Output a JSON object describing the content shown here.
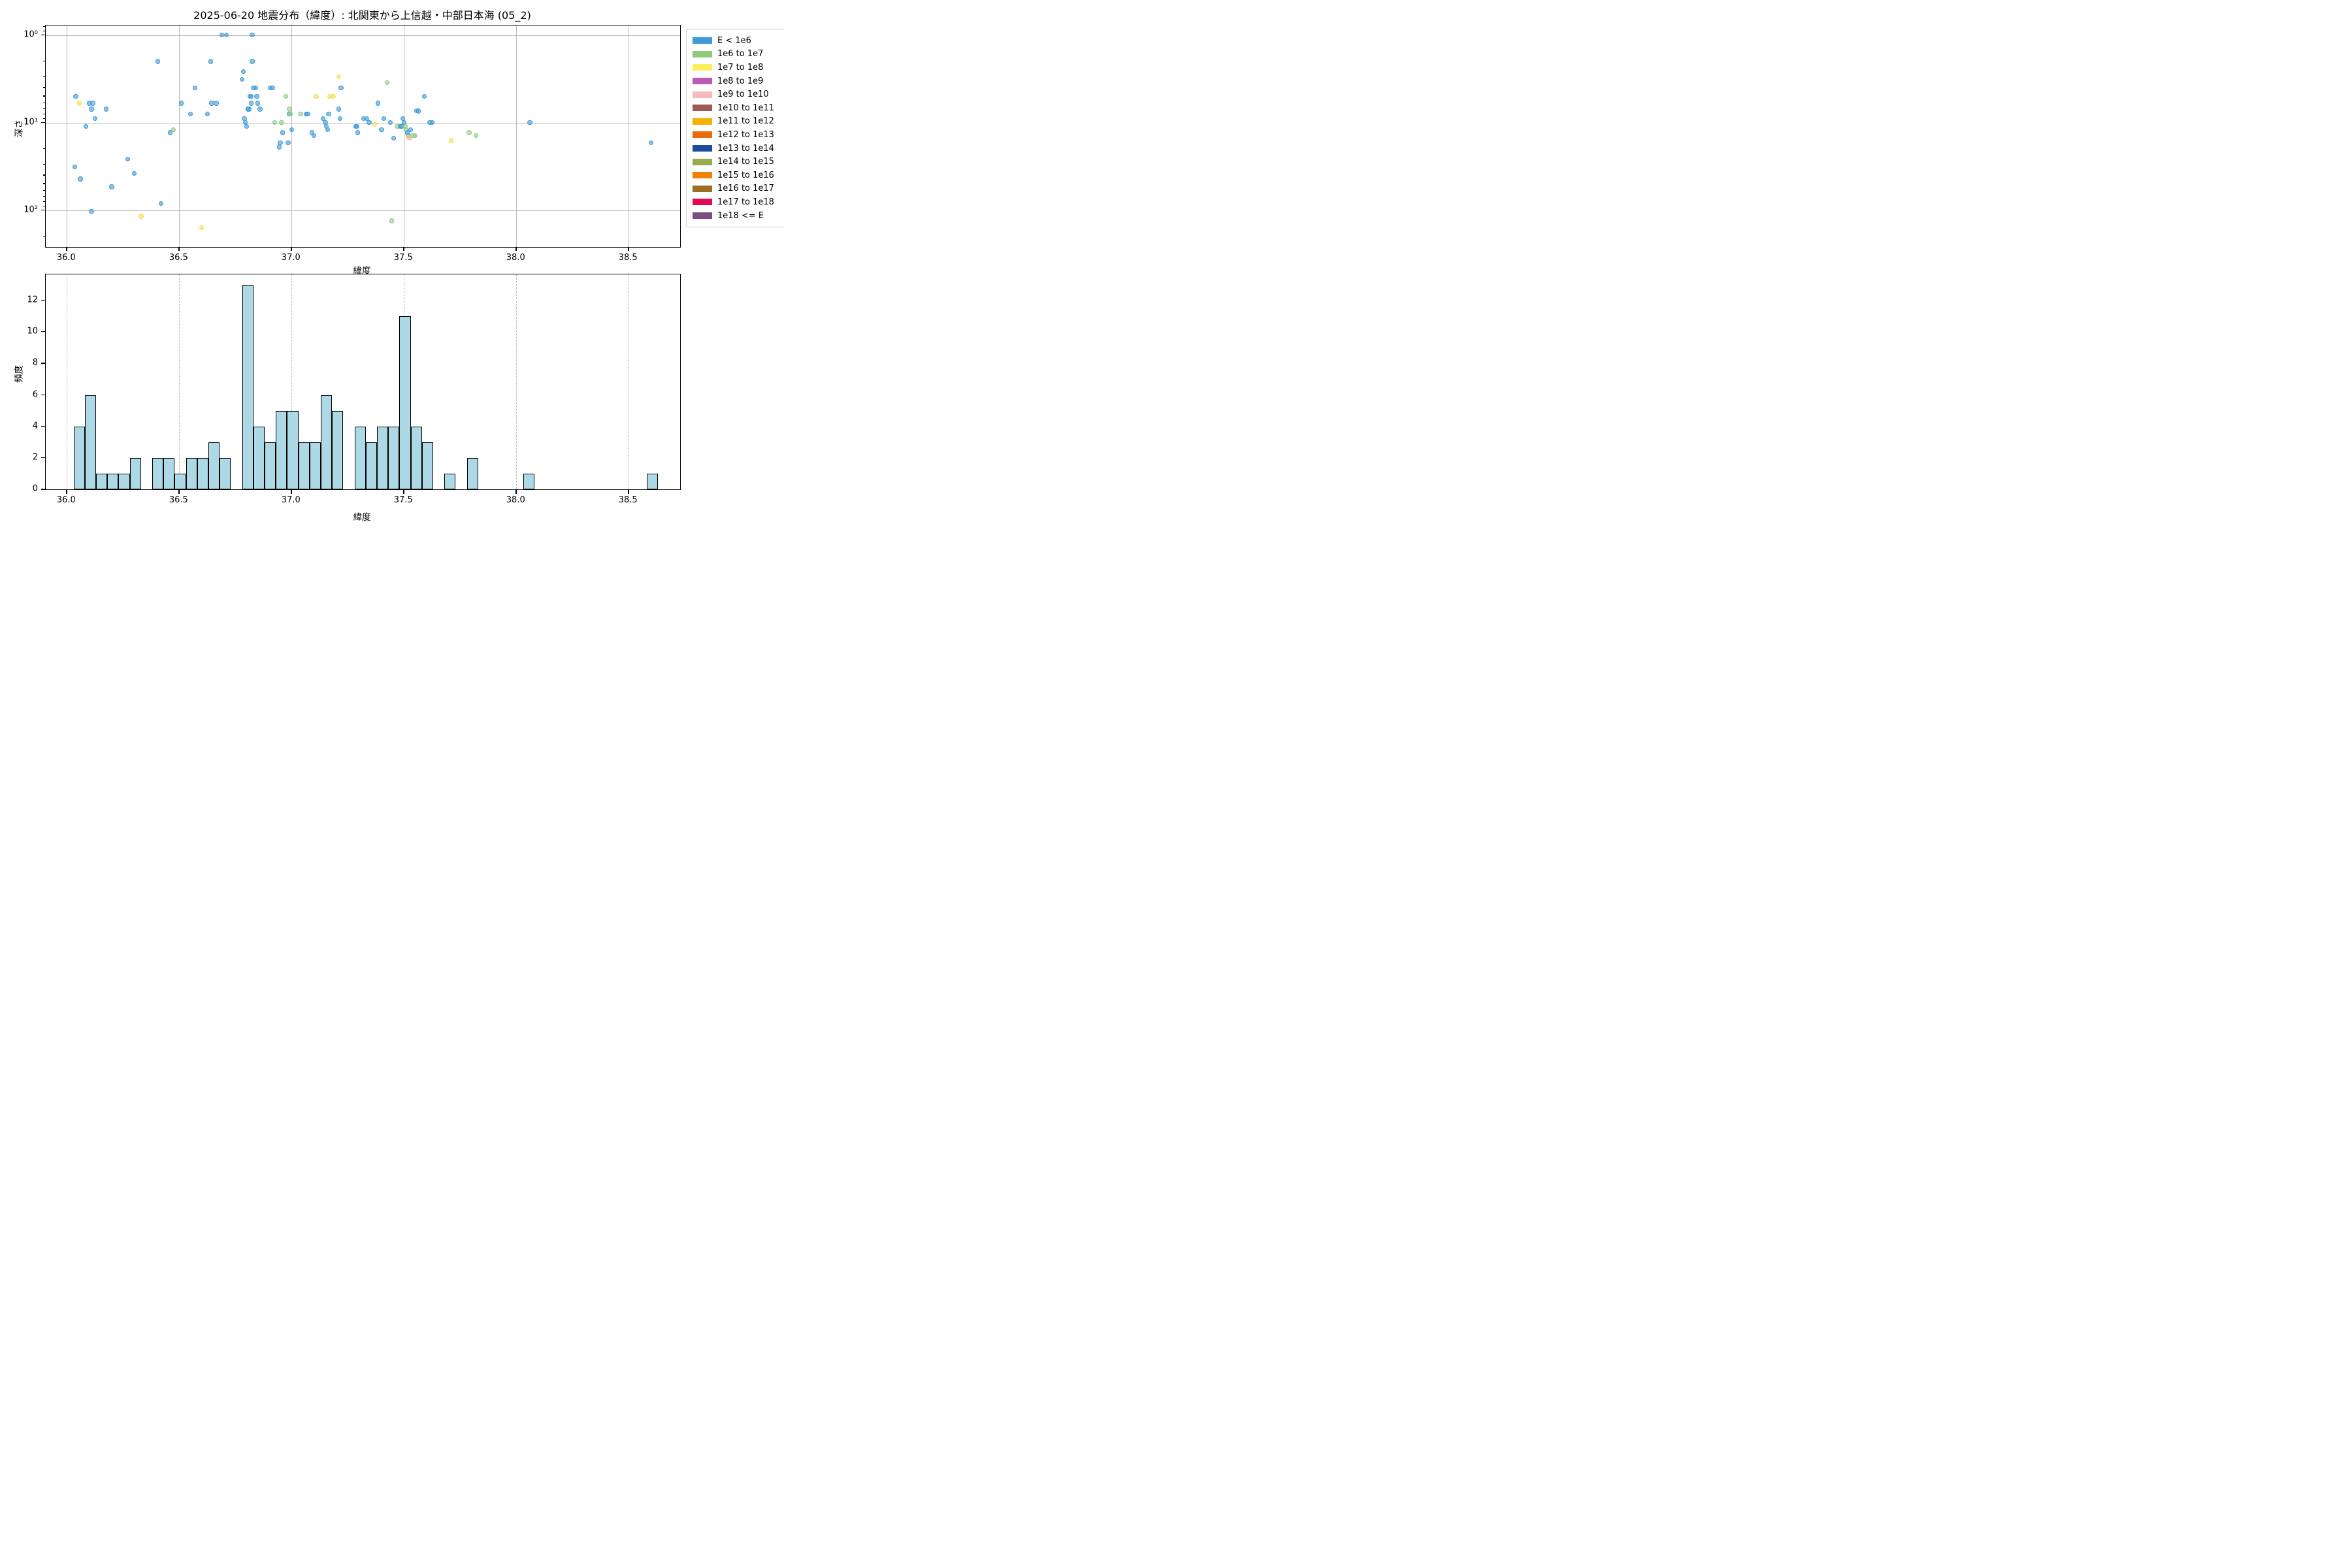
{
  "figure": {
    "title": "2025-06-20 地震分布（緯度）: 北関東から上信越・中部日本海 (05_2)",
    "background": "#ffffff"
  },
  "legend": {
    "items": [
      {
        "label": "E < 1e6",
        "color": "#3E9BD9"
      },
      {
        "label": "1e6 to 1e7",
        "color": "#8FCB7E"
      },
      {
        "label": "1e7 to 1e8",
        "color": "#F9EE5C"
      },
      {
        "label": "1e8 to 1e9",
        "color": "#BA5CB3"
      },
      {
        "label": "1e9 to 1e10",
        "color": "#F5B9BE"
      },
      {
        "label": "1e10 to 1e11",
        "color": "#9D5B52"
      },
      {
        "label": "1e11 to 1e12",
        "color": "#F3B200"
      },
      {
        "label": "1e12 to 1e13",
        "color": "#E96B0C"
      },
      {
        "label": "1e13 to 1e14",
        "color": "#1C4C9C"
      },
      {
        "label": "1e14 to 1e15",
        "color": "#95AB4D"
      },
      {
        "label": "1e15 to 1e16",
        "color": "#F08200"
      },
      {
        "label": "1e16 to 1e17",
        "color": "#9A6F24"
      },
      {
        "label": "1e17 to 1e18",
        "color": "#E00D4E"
      },
      {
        "label": "1e18 <= E",
        "color": "#7C4D80"
      }
    ]
  },
  "chart_data": [
    {
      "type": "scatter",
      "title": "2025-06-20 地震分布（緯度）: 北関東から上信越・中部日本海 (05_2)",
      "xlabel": "緯度",
      "ylabel": "深さ",
      "x_range": [
        35.906,
        38.729
      ],
      "y_scale": "log",
      "y_inverted": true,
      "y_range_depth": [
        0.77,
        266
      ],
      "xticks": [
        "36.0",
        "36.5",
        "37.0",
        "37.5",
        "38.0",
        "38.5"
      ],
      "xtick_values": [
        36.0,
        36.5,
        37.0,
        37.5,
        38.0,
        38.5
      ],
      "yticks": [
        "10⁰",
        "10¹",
        "10²"
      ],
      "ytick_values": [
        1,
        10,
        100
      ],
      "grid": "solid",
      "legend_position": "upper right outside",
      "marker_alpha": 0.6,
      "points_format": "[latitude, depth_km, energy_class_index]",
      "points": [
        [
          36.04,
          5.0,
          0
        ],
        [
          36.055,
          6.0,
          2
        ],
        [
          36.035,
          32,
          0
        ],
        [
          36.06,
          44,
          0
        ],
        [
          36.1,
          6.0,
          0
        ],
        [
          36.115,
          6.0,
          0
        ],
        [
          36.11,
          7.0,
          0
        ],
        [
          36.125,
          9.0,
          0
        ],
        [
          36.085,
          11,
          0
        ],
        [
          36.11,
          103,
          0
        ],
        [
          36.175,
          7.0,
          0
        ],
        [
          36.2,
          54,
          0
        ],
        [
          36.27,
          26,
          0
        ],
        [
          36.3,
          38,
          0
        ],
        [
          36.33,
          117,
          2
        ],
        [
          36.405,
          2.0,
          0
        ],
        [
          36.42,
          84,
          0
        ],
        [
          36.46,
          13,
          0
        ],
        [
          36.475,
          12,
          1
        ],
        [
          36.51,
          6.0,
          0
        ],
        [
          36.55,
          8.0,
          0
        ],
        [
          36.57,
          4.0,
          0
        ],
        [
          36.6,
          158,
          2
        ],
        [
          36.625,
          8.0,
          0
        ],
        [
          36.64,
          2.0,
          0
        ],
        [
          36.645,
          6.0,
          0
        ],
        [
          36.665,
          6.0,
          0
        ],
        [
          36.69,
          1.0,
          0
        ],
        [
          36.71,
          1.0,
          0
        ],
        [
          36.78,
          3.2,
          0
        ],
        [
          36.785,
          2.6,
          0
        ],
        [
          36.79,
          9.0,
          0
        ],
        [
          36.795,
          10,
          0
        ],
        [
          36.8,
          11,
          0
        ],
        [
          36.805,
          7.0,
          0
        ],
        [
          36.81,
          7.0,
          0
        ],
        [
          36.815,
          5.0,
          0
        ],
        [
          36.82,
          5.0,
          0
        ],
        [
          36.82,
          6.0,
          0
        ],
        [
          36.825,
          1.0,
          0
        ],
        [
          36.825,
          2.0,
          0
        ],
        [
          36.83,
          4.0,
          0
        ],
        [
          36.84,
          4.0,
          0
        ],
        [
          36.845,
          5.0,
          0
        ],
        [
          36.85,
          6.0,
          0
        ],
        [
          36.86,
          7.0,
          0
        ],
        [
          36.905,
          4.0,
          0
        ],
        [
          36.915,
          4.0,
          0
        ],
        [
          36.925,
          10,
          1
        ],
        [
          36.945,
          19,
          0
        ],
        [
          36.95,
          17,
          0
        ],
        [
          36.955,
          10,
          1
        ],
        [
          36.96,
          13,
          0
        ],
        [
          36.975,
          5.0,
          1
        ],
        [
          36.985,
          17,
          0
        ],
        [
          36.99,
          7.0,
          1
        ],
        [
          36.99,
          8.0,
          0
        ],
        [
          36.995,
          8.0,
          1
        ],
        [
          37.0,
          12,
          0
        ],
        [
          37.04,
          8.0,
          1
        ],
        [
          37.065,
          8.0,
          0
        ],
        [
          37.072,
          8.0,
          0
        ],
        [
          37.09,
          13,
          0
        ],
        [
          37.1,
          14,
          0
        ],
        [
          37.11,
          5.0,
          2
        ],
        [
          37.14,
          9.0,
          0
        ],
        [
          37.15,
          10,
          0
        ],
        [
          37.155,
          11,
          0
        ],
        [
          37.16,
          12,
          0
        ],
        [
          37.165,
          8.0,
          0
        ],
        [
          37.17,
          5.0,
          2
        ],
        [
          37.185,
          5.0,
          2
        ],
        [
          37.21,
          3.0,
          2
        ],
        [
          37.21,
          7.0,
          0
        ],
        [
          37.215,
          9.0,
          0
        ],
        [
          37.22,
          4.0,
          0
        ],
        [
          37.285,
          11,
          0
        ],
        [
          37.29,
          11,
          0
        ],
        [
          37.295,
          13,
          0
        ],
        [
          37.32,
          9.0,
          0
        ],
        [
          37.335,
          9.0,
          0
        ],
        [
          37.345,
          10,
          0
        ],
        [
          37.37,
          10.5,
          2
        ],
        [
          37.385,
          6.0,
          0
        ],
        [
          37.4,
          12,
          0
        ],
        [
          37.41,
          9.0,
          0
        ],
        [
          37.425,
          3.5,
          1
        ],
        [
          37.44,
          10,
          0
        ],
        [
          37.445,
          132,
          1
        ],
        [
          37.455,
          15,
          0
        ],
        [
          37.47,
          11,
          1
        ],
        [
          37.485,
          11,
          0
        ],
        [
          37.49,
          11,
          0
        ],
        [
          37.495,
          9.0,
          0
        ],
        [
          37.5,
          10,
          0
        ],
        [
          37.505,
          11,
          1
        ],
        [
          37.51,
          12,
          1
        ],
        [
          37.515,
          13,
          0
        ],
        [
          37.52,
          14,
          0
        ],
        [
          37.52,
          14.5,
          2
        ],
        [
          37.525,
          15,
          4
        ],
        [
          37.53,
          12,
          0
        ],
        [
          37.54,
          14,
          1
        ],
        [
          37.55,
          14,
          1
        ],
        [
          37.555,
          7.3,
          0
        ],
        [
          37.565,
          7.4,
          0
        ],
        [
          37.59,
          5.0,
          0
        ],
        [
          37.615,
          10,
          0
        ],
        [
          37.625,
          10,
          0
        ],
        [
          37.71,
          16,
          2
        ],
        [
          37.79,
          13,
          1
        ],
        [
          37.82,
          14,
          1
        ],
        [
          38.06,
          10,
          0
        ],
        [
          38.6,
          17,
          0
        ]
      ]
    },
    {
      "type": "bar",
      "subtype": "histogram",
      "xlabel": "緯度",
      "ylabel": "頻度",
      "x_range": [
        35.906,
        38.729
      ],
      "ylim": [
        0,
        13.65
      ],
      "xticks": [
        "36.0",
        "36.5",
        "37.0",
        "37.5",
        "38.0",
        "38.5"
      ],
      "xtick_values": [
        36.0,
        36.5,
        37.0,
        37.5,
        38.0,
        38.5
      ],
      "yticks": [
        "0",
        "2",
        "4",
        "6",
        "8",
        "10",
        "12"
      ],
      "ytick_values": [
        0,
        2,
        4,
        6,
        8,
        10,
        12
      ],
      "grid": "dashed",
      "bar_color": "#ADD8E6",
      "bar_edge_color": "#000000",
      "bin_start": 36.03,
      "bin_width": 0.05,
      "values": [
        4,
        6,
        1,
        1,
        1,
        2,
        0,
        2,
        2,
        1,
        2,
        2,
        3,
        2,
        0,
        13,
        4,
        3,
        5,
        5,
        3,
        3,
        6,
        5,
        0,
        4,
        3,
        4,
        4,
        11,
        4,
        3,
        0,
        1,
        0,
        2,
        0,
        0,
        0,
        0,
        1,
        0,
        0,
        0,
        0,
        0,
        0,
        0,
        0,
        0,
        0,
        1
      ]
    }
  ],
  "marker_class_colors": {
    "0": "#3E9BD9",
    "1": "#8FCB7E",
    "2": "#F0E14C",
    "4": "#F5B9BE"
  }
}
